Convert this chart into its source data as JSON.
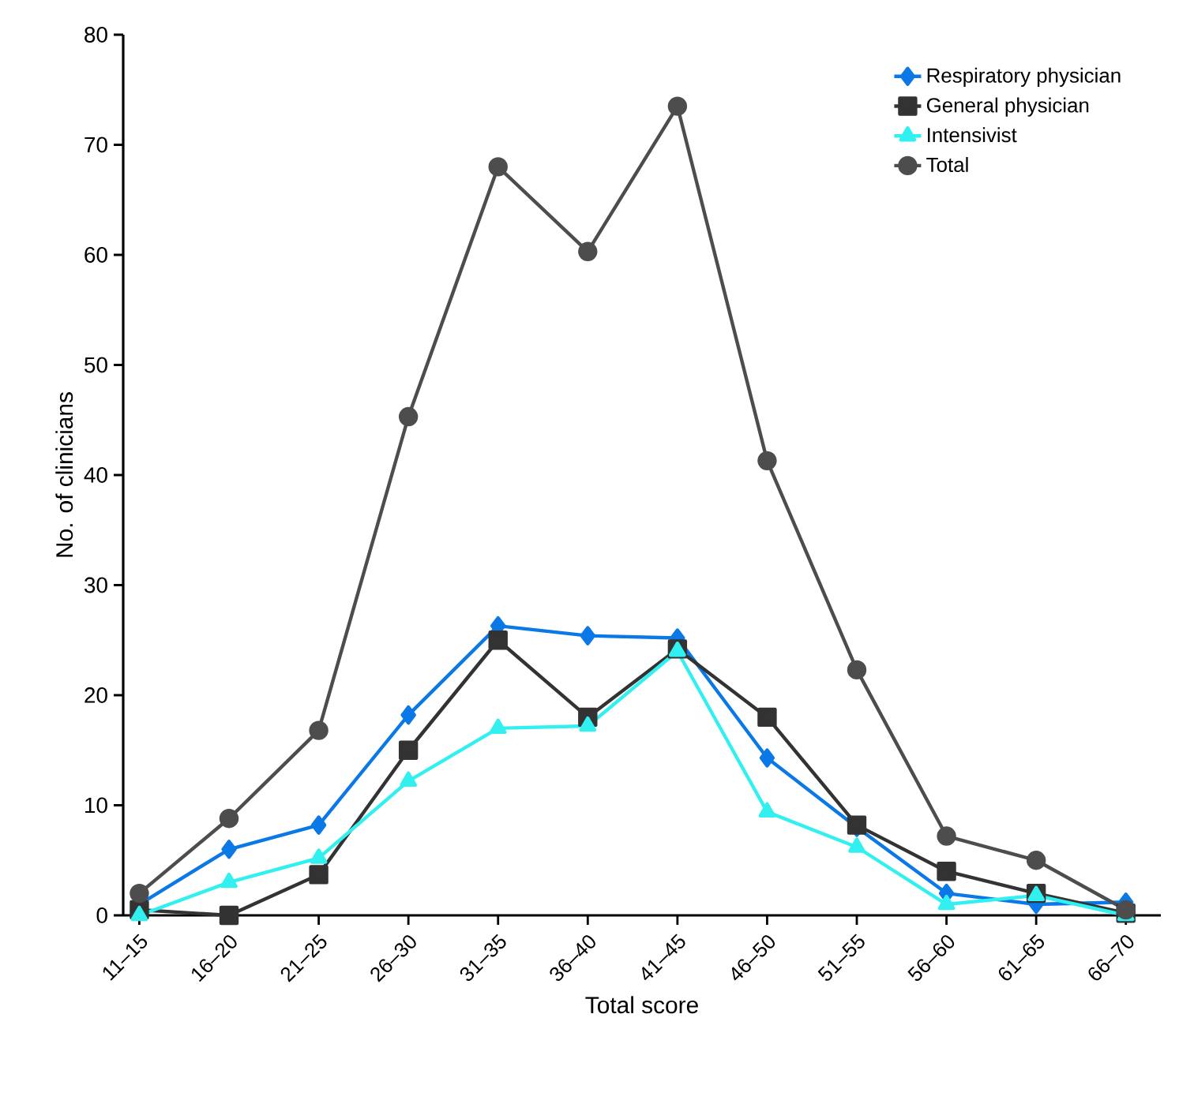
{
  "chart_data": {
    "type": "line",
    "xlabel": "Total score",
    "ylabel": "No. of clinicians",
    "categories": [
      "11–15",
      "16–20",
      "21–25",
      "26–30",
      "31–35",
      "36–40",
      "41–45",
      "46–50",
      "51–55",
      "56–60",
      "61–65",
      "66–70"
    ],
    "series": [
      {
        "name": "Respiratory physician",
        "color": "#0a78e6",
        "marker": "diamond",
        "values": [
          1,
          6,
          8.2,
          18.2,
          26.3,
          25.4,
          25.2,
          14.3,
          8,
          2,
          1,
          1.2
        ]
      },
      {
        "name": "General physician",
        "color": "#333333",
        "marker": "square",
        "values": [
          0.5,
          0,
          3.7,
          15,
          25,
          18,
          24.2,
          18,
          8.2,
          4,
          2,
          0.2
        ]
      },
      {
        "name": "Intensivist",
        "color": "#33f0f0",
        "marker": "triangle",
        "values": [
          0,
          3,
          5.2,
          12.2,
          17,
          17.2,
          24,
          9.4,
          6.2,
          1,
          1.8,
          0
        ]
      },
      {
        "name": "Total",
        "color": "#4d4d4d",
        "marker": "circle",
        "values": [
          2,
          8.8,
          16.8,
          45.3,
          68,
          60.3,
          73.5,
          41.3,
          22.3,
          7.2,
          5,
          0.5
        ]
      }
    ],
    "ylim": [
      0,
      80
    ],
    "yticks": [
      0,
      10,
      20,
      30,
      40,
      50,
      60,
      70,
      80
    ],
    "grid": false,
    "legend": "top right"
  }
}
